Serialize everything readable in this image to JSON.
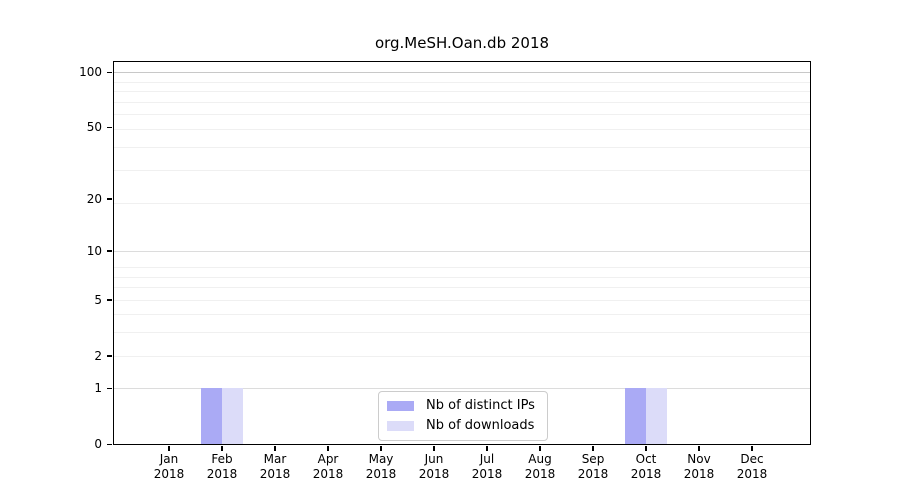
{
  "chart_data": {
    "type": "bar",
    "title": "org.MeSH.Oan.db 2018",
    "months": [
      "Jan",
      "Feb",
      "Mar",
      "Apr",
      "May",
      "Jun",
      "Jul",
      "Aug",
      "Sep",
      "Oct",
      "Nov",
      "Dec"
    ],
    "year": "2018",
    "categories": [
      "Jan 2018",
      "Feb 2018",
      "Mar 2018",
      "Apr 2018",
      "May 2018",
      "Jun 2018",
      "Jul 2018",
      "Aug 2018",
      "Sep 2018",
      "Oct 2018",
      "Nov 2018",
      "Dec 2018"
    ],
    "series": [
      {
        "name": "Nb of distinct IPs",
        "color": "#aaaaf5",
        "values": [
          0,
          1,
          0,
          0,
          0,
          0,
          0,
          0,
          0,
          1,
          0,
          0
        ]
      },
      {
        "name": "Nb of downloads",
        "color": "#dcdcf9",
        "values": [
          0,
          1,
          0,
          0,
          0,
          0,
          0,
          0,
          0,
          1,
          0,
          0
        ]
      }
    ],
    "xlabel": "",
    "ylabel": "",
    "yscale": "log1p",
    "ylim": [
      0,
      114
    ],
    "yticks": [
      0,
      1,
      2,
      5,
      10,
      20,
      50,
      100
    ],
    "grid": "horizontal",
    "legend_position": "bottom-center"
  },
  "colors": {
    "spine": "#000000",
    "grid_minor": "#f0f0f0",
    "grid_mid": "#dcdcdc",
    "grid_major": "#c8c8c8",
    "legend_border": "#cccccc"
  }
}
